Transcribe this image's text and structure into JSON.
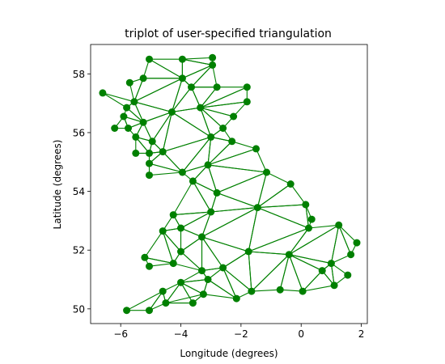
{
  "chart_data": {
    "type": "scatter",
    "title": "triplot of user-specified triangulation",
    "xlabel": "Longitude (degrees)",
    "ylabel": "Latitude (degrees)",
    "xlim": [
      -7.0,
      2.2
    ],
    "ylim": [
      49.5,
      59.0
    ],
    "xticks": [
      -6,
      -4,
      -2,
      0,
      2
    ],
    "yticks": [
      50,
      52,
      54,
      56,
      58
    ],
    "xtick_labels": [
      "−6",
      "−4",
      "−2",
      "0",
      "2"
    ],
    "ytick_labels": [
      "50",
      "52",
      "54",
      "56",
      "58"
    ],
    "grid": false,
    "color": "#008000",
    "points": [
      {
        "x": -5.05,
        "y": 58.5
      },
      {
        "x": -3.95,
        "y": 58.5
      },
      {
        "x": -2.95,
        "y": 58.55
      },
      {
        "x": -2.95,
        "y": 58.3
      },
      {
        "x": -5.25,
        "y": 57.85
      },
      {
        "x": -3.95,
        "y": 57.85
      },
      {
        "x": -5.7,
        "y": 57.7
      },
      {
        "x": -3.65,
        "y": 57.55
      },
      {
        "x": -2.8,
        "y": 57.55
      },
      {
        "x": -1.8,
        "y": 57.55
      },
      {
        "x": -6.6,
        "y": 57.35
      },
      {
        "x": -5.55,
        "y": 57.05
      },
      {
        "x": -1.8,
        "y": 57.05
      },
      {
        "x": -5.8,
        "y": 56.85
      },
      {
        "x": -3.35,
        "y": 56.85
      },
      {
        "x": -4.3,
        "y": 56.7
      },
      {
        "x": -5.9,
        "y": 56.55
      },
      {
        "x": -2.25,
        "y": 56.55
      },
      {
        "x": -5.25,
        "y": 56.35
      },
      {
        "x": -6.2,
        "y": 56.15
      },
      {
        "x": -5.75,
        "y": 56.15
      },
      {
        "x": -2.6,
        "y": 56.15
      },
      {
        "x": -5.5,
        "y": 55.85
      },
      {
        "x": -3.0,
        "y": 55.85
      },
      {
        "x": -4.95,
        "y": 55.7
      },
      {
        "x": -2.3,
        "y": 55.7
      },
      {
        "x": -1.5,
        "y": 55.45
      },
      {
        "x": -4.6,
        "y": 55.35
      },
      {
        "x": -5.5,
        "y": 55.3
      },
      {
        "x": -5.05,
        "y": 55.3
      },
      {
        "x": -5.05,
        "y": 54.95
      },
      {
        "x": -3.1,
        "y": 54.9
      },
      {
        "x": -3.95,
        "y": 54.65
      },
      {
        "x": -1.15,
        "y": 54.65
      },
      {
        "x": -5.05,
        "y": 54.55
      },
      {
        "x": -3.6,
        "y": 54.35
      },
      {
        "x": -0.35,
        "y": 54.25
      },
      {
        "x": -2.8,
        "y": 53.95
      },
      {
        "x": 0.15,
        "y": 53.55
      },
      {
        "x": -1.45,
        "y": 53.45
      },
      {
        "x": -3.0,
        "y": 53.3
      },
      {
        "x": -4.25,
        "y": 53.2
      },
      {
        "x": 0.35,
        "y": 53.05
      },
      {
        "x": 1.25,
        "y": 52.85
      },
      {
        "x": -4.0,
        "y": 52.75
      },
      {
        "x": 0.25,
        "y": 52.75
      },
      {
        "x": -4.6,
        "y": 52.65
      },
      {
        "x": -3.3,
        "y": 52.45
      },
      {
        "x": 1.85,
        "y": 52.25
      },
      {
        "x": -1.75,
        "y": 51.95
      },
      {
        "x": -4.0,
        "y": 51.95
      },
      {
        "x": -0.4,
        "y": 51.85
      },
      {
        "x": 1.65,
        "y": 51.85
      },
      {
        "x": -5.2,
        "y": 51.75
      },
      {
        "x": -4.25,
        "y": 51.55
      },
      {
        "x": 1.0,
        "y": 51.55
      },
      {
        "x": -5.05,
        "y": 51.45
      },
      {
        "x": -2.6,
        "y": 51.4
      },
      {
        "x": -3.3,
        "y": 51.3
      },
      {
        "x": 0.7,
        "y": 51.3
      },
      {
        "x": 1.55,
        "y": 51.15
      },
      {
        "x": -3.1,
        "y": 51.0
      },
      {
        "x": -4.0,
        "y": 50.9
      },
      {
        "x": 1.1,
        "y": 50.8
      },
      {
        "x": -0.7,
        "y": 50.65
      },
      {
        "x": 0.05,
        "y": 50.6
      },
      {
        "x": -4.6,
        "y": 50.6
      },
      {
        "x": -1.65,
        "y": 50.6
      },
      {
        "x": -3.25,
        "y": 50.5
      },
      {
        "x": -2.15,
        "y": 50.35
      },
      {
        "x": -4.5,
        "y": 50.2
      },
      {
        "x": -3.6,
        "y": 50.2
      },
      {
        "x": -5.8,
        "y": 49.95
      },
      {
        "x": -5.05,
        "y": 49.95
      }
    ],
    "triangles": [
      [
        0,
        1,
        5
      ],
      [
        1,
        2,
        3
      ],
      [
        1,
        3,
        5
      ],
      [
        0,
        4,
        5
      ],
      [
        3,
        7,
        5
      ],
      [
        3,
        8,
        7
      ],
      [
        4,
        6,
        11
      ],
      [
        4,
        11,
        5
      ],
      [
        11,
        15,
        5
      ],
      [
        5,
        15,
        7
      ],
      [
        7,
        15,
        14
      ],
      [
        7,
        14,
        8
      ],
      [
        8,
        14,
        9
      ],
      [
        9,
        14,
        12
      ],
      [
        12,
        14,
        17
      ],
      [
        10,
        11,
        13
      ],
      [
        11,
        13,
        18
      ],
      [
        11,
        18,
        15
      ],
      [
        13,
        16,
        18
      ],
      [
        16,
        20,
        18
      ],
      [
        16,
        19,
        20
      ],
      [
        20,
        22,
        18
      ],
      [
        18,
        22,
        24
      ],
      [
        18,
        24,
        15
      ],
      [
        15,
        24,
        27
      ],
      [
        15,
        27,
        23
      ],
      [
        15,
        23,
        14
      ],
      [
        14,
        21,
        17
      ],
      [
        14,
        23,
        21
      ],
      [
        22,
        28,
        29
      ],
      [
        22,
        29,
        24
      ],
      [
        24,
        29,
        27
      ],
      [
        29,
        30,
        27
      ],
      [
        30,
        34,
        32
      ],
      [
        30,
        32,
        27
      ],
      [
        27,
        32,
        23
      ],
      [
        23,
        32,
        31
      ],
      [
        23,
        31,
        25
      ],
      [
        23,
        25,
        21
      ],
      [
        25,
        31,
        26
      ],
      [
        26,
        31,
        33
      ],
      [
        32,
        35,
        31
      ],
      [
        35,
        37,
        31
      ],
      [
        31,
        37,
        33
      ],
      [
        33,
        37,
        39
      ],
      [
        33,
        39,
        36
      ],
      [
        36,
        39,
        38
      ],
      [
        37,
        40,
        39
      ],
      [
        37,
        35,
        40
      ],
      [
        35,
        41,
        40
      ],
      [
        41,
        44,
        40
      ],
      [
        44,
        47,
        40
      ],
      [
        41,
        46,
        44
      ],
      [
        40,
        47,
        39
      ],
      [
        47,
        49,
        39
      ],
      [
        39,
        49,
        45
      ],
      [
        39,
        45,
        38
      ],
      [
        38,
        45,
        42
      ],
      [
        45,
        51,
        49
      ],
      [
        45,
        43,
        51
      ],
      [
        43,
        48,
        52
      ],
      [
        43,
        52,
        55
      ],
      [
        43,
        55,
        51
      ],
      [
        51,
        55,
        59
      ],
      [
        51,
        59,
        65
      ],
      [
        51,
        65,
        64
      ],
      [
        51,
        64,
        67
      ],
      [
        51,
        67,
        49
      ],
      [
        49,
        67,
        57
      ],
      [
        49,
        57,
        47
      ],
      [
        47,
        57,
        58
      ],
      [
        47,
        58,
        50
      ],
      [
        50,
        58,
        54
      ],
      [
        44,
        50,
        47
      ],
      [
        46,
        50,
        44
      ],
      [
        46,
        54,
        50
      ],
      [
        53,
        54,
        56
      ],
      [
        46,
        53,
        54
      ],
      [
        55,
        60,
        63
      ],
      [
        55,
        63,
        59
      ],
      [
        59,
        63,
        65
      ],
      [
        57,
        67,
        69
      ],
      [
        57,
        69,
        61
      ],
      [
        57,
        61,
        58
      ],
      [
        61,
        62,
        58
      ],
      [
        61,
        68,
        62
      ],
      [
        61,
        69,
        68
      ],
      [
        68,
        71,
        62
      ],
      [
        62,
        71,
        70
      ],
      [
        62,
        70,
        66
      ],
      [
        72,
        73,
        66
      ],
      [
        66,
        73,
        70
      ],
      [
        70,
        71,
        68
      ]
    ]
  }
}
